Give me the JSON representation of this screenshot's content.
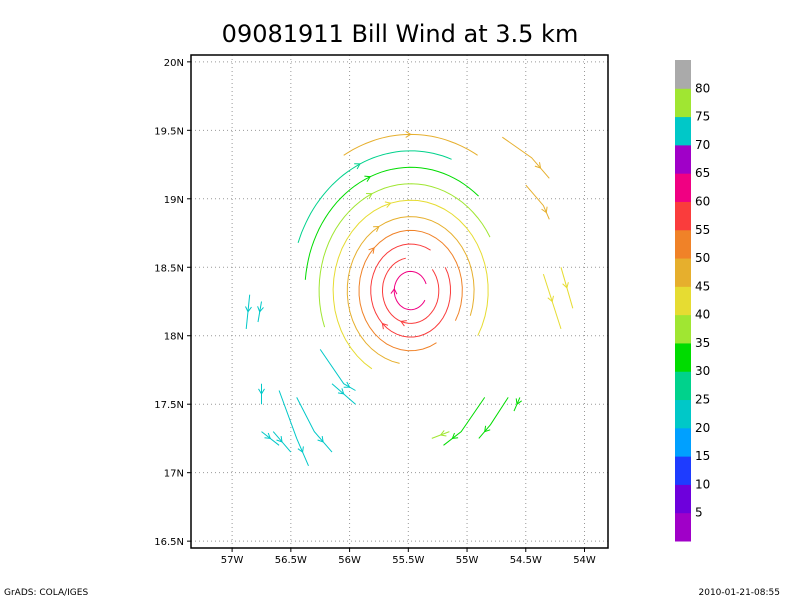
{
  "chart_data": {
    "type": "streamline",
    "title": "09081911 Bill Wind at 3.5 km",
    "x_ticks": [
      "57W",
      "56.5W",
      "56W",
      "55.5W",
      "55W",
      "54.5W",
      "54W"
    ],
    "x_tick_values": [
      -57,
      -56.5,
      -56,
      -55.5,
      -55,
      -54.5,
      -54
    ],
    "y_ticks": [
      "20N",
      "19.5N",
      "19N",
      "18.5N",
      "18N",
      "17.5N",
      "17N",
      "16.5N"
    ],
    "y_tick_values": [
      20,
      19.5,
      19,
      18.5,
      18,
      17.5,
      17,
      16.5
    ],
    "xlim": [
      -57.35,
      -53.8
    ],
    "ylim": [
      16.45,
      20.05
    ],
    "grid": true,
    "center": {
      "lon": -55.48,
      "lat": 18.33
    },
    "colorbar": {
      "labels": [
        "5",
        "10",
        "15",
        "20",
        "25",
        "30",
        "35",
        "40",
        "45",
        "50",
        "55",
        "60",
        "65",
        "70",
        "75",
        "80"
      ],
      "colors": [
        "#a000c8",
        "#6e00dc",
        "#1e3cff",
        "#00a0ff",
        "#00c8c8",
        "#00d28c",
        "#00dc00",
        "#a0e632",
        "#e6dc32",
        "#e6af2d",
        "#f08228",
        "#fa3c3c",
        "#f00082",
        "#a000c8",
        "#00c8c8",
        "#a0e632",
        "#aaaaaa"
      ]
    },
    "rings": [
      {
        "r": 0.14,
        "speed": 62,
        "a0": 20,
        "a1": 330
      },
      {
        "r": 0.24,
        "speed": 58,
        "a0": 100,
        "a1": 400
      },
      {
        "r": 0.34,
        "speed": 55,
        "a0": 60,
        "a1": 390
      },
      {
        "r": 0.44,
        "speed": 50,
        "a0": -30,
        "a1": 300
      },
      {
        "r": 0.54,
        "speed": 45,
        "a0": -20,
        "a1": 260
      },
      {
        "r": 0.66,
        "speed": 40,
        "a0": -30,
        "a1": 240
      },
      {
        "r": 0.78,
        "speed": 37,
        "a0": 30,
        "a1": 200
      },
      {
        "r": 0.9,
        "speed": 33,
        "a0": 50,
        "a1": 175
      },
      {
        "r": 1.02,
        "speed": 28,
        "a0": 70,
        "a1": 160
      },
      {
        "r": 1.14,
        "speed": 46,
        "a0": 60,
        "a1": 120
      }
    ],
    "segments": [
      {
        "speed": 22,
        "pts": [
          [
            -56.85,
            18.3
          ],
          [
            -56.88,
            18.05
          ]
        ]
      },
      {
        "speed": 22,
        "pts": [
          [
            -56.75,
            18.25
          ],
          [
            -56.78,
            18.1
          ]
        ]
      },
      {
        "speed": 20,
        "pts": [
          [
            -56.6,
            17.6
          ],
          [
            -56.45,
            17.25
          ],
          [
            -56.35,
            17.05
          ]
        ]
      },
      {
        "speed": 20,
        "pts": [
          [
            -56.45,
            17.55
          ],
          [
            -56.3,
            17.3
          ],
          [
            -56.15,
            17.15
          ]
        ]
      },
      {
        "speed": 20,
        "pts": [
          [
            -56.65,
            17.3
          ],
          [
            -56.5,
            17.15
          ]
        ]
      },
      {
        "speed": 20,
        "pts": [
          [
            -56.75,
            17.3
          ],
          [
            -56.6,
            17.2
          ]
        ]
      },
      {
        "speed": 22,
        "pts": [
          [
            -56.25,
            17.9
          ],
          [
            -56.05,
            17.65
          ],
          [
            -55.95,
            17.6
          ]
        ]
      },
      {
        "speed": 22,
        "pts": [
          [
            -56.15,
            17.65
          ],
          [
            -55.95,
            17.5
          ]
        ]
      },
      {
        "speed": 20,
        "pts": [
          [
            -56.75,
            17.65
          ],
          [
            -56.75,
            17.5
          ]
        ]
      },
      {
        "speed": 34,
        "pts": [
          [
            -54.85,
            17.55
          ],
          [
            -55.05,
            17.3
          ],
          [
            -55.2,
            17.2
          ]
        ]
      },
      {
        "speed": 34,
        "pts": [
          [
            -54.65,
            17.55
          ],
          [
            -54.8,
            17.35
          ],
          [
            -54.9,
            17.25
          ]
        ]
      },
      {
        "speed": 30,
        "pts": [
          [
            -54.55,
            17.55
          ],
          [
            -54.6,
            17.45
          ]
        ]
      },
      {
        "speed": 36,
        "pts": [
          [
            -55.15,
            17.3
          ],
          [
            -55.3,
            17.25
          ]
        ]
      },
      {
        "speed": 48,
        "pts": [
          [
            -54.7,
            19.45
          ],
          [
            -54.45,
            19.3
          ],
          [
            -54.3,
            19.15
          ]
        ]
      },
      {
        "speed": 48,
        "pts": [
          [
            -54.5,
            19.1
          ],
          [
            -54.35,
            18.95
          ],
          [
            -54.3,
            18.85
          ]
        ]
      },
      {
        "speed": 40,
        "pts": [
          [
            -54.2,
            18.5
          ],
          [
            -54.1,
            18.2
          ]
        ]
      },
      {
        "speed": 40,
        "pts": [
          [
            -54.35,
            18.45
          ],
          [
            -54.2,
            18.05
          ]
        ]
      }
    ]
  },
  "footer": {
    "left": "GrADS: COLA/IGES",
    "right": "2010-01-21-08:55"
  }
}
